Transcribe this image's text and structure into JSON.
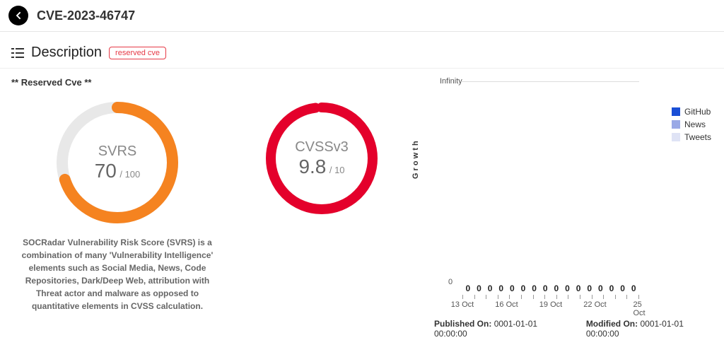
{
  "header": {
    "cve_id": "CVE-2023-46747"
  },
  "section": {
    "title": "Description",
    "badge": "reserved cve",
    "badge_color": "#e63946",
    "reserved_note": "** Reserved Cve **"
  },
  "svrs": {
    "label": "SVRS",
    "value": "70",
    "max": "/ 100",
    "percent": 70,
    "ring_color": "#f58320",
    "track_color": "#e8e8e8",
    "description": "SOCRadar Vulnerability Risk Score (SVRS) is a combination of many 'Vulnerability Intelligence' elements such as Social Media, News, Code Repositories, Dark/Deep Web, attribution with Threat actor and malware as opposed to quantitative elements in CVSS calculation."
  },
  "cvss": {
    "label": "CVSSv3",
    "value": "9.8",
    "max": "/ 10",
    "percent": 98,
    "ring_color": "#e4002b",
    "track_color": "#f2f2f2"
  },
  "chart": {
    "y_top": "Infinity",
    "y_bottom": "0",
    "y_title": "G r o w t h",
    "data_points": [
      "0",
      "0",
      "0",
      "0",
      "0",
      "0",
      "0",
      "0",
      "0",
      "0",
      "0",
      "0",
      "0",
      "0",
      "0",
      "0"
    ],
    "x_labels": [
      "13 Oct",
      "16 Oct",
      "19 Oct",
      "22 Oct",
      "25 Oct"
    ],
    "legend": [
      {
        "label": "GitHub",
        "color": "#1a4fd6"
      },
      {
        "label": "News",
        "color": "#9aa9e6"
      },
      {
        "label": "Tweets",
        "color": "#dfe3f5"
      }
    ]
  },
  "dates": {
    "published_label": "Published On:",
    "published_value": "0001-01-01 00:00:00",
    "modified_label": "Modified On:",
    "modified_value": "0001-01-01 00:00:00"
  }
}
